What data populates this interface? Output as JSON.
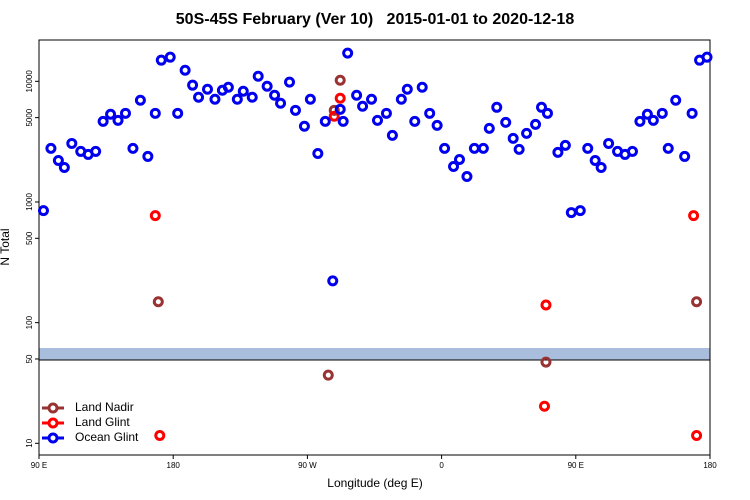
{
  "chart_data": {
    "type": "scatter",
    "title": "50S-45S February (Ver 10)   2015-01-01 to 2020-12-18",
    "xlabel": "Longitude (deg E)",
    "ylabel": "N Total",
    "xlim": [
      90,
      540
    ],
    "xticks": [
      {
        "value": 90,
        "label": "90 E"
      },
      180,
      {
        "value": 270,
        "label": "90 W"
      },
      {
        "value": 360,
        "label": "0"
      },
      {
        "value": 450,
        "label": "90 E"
      },
      {
        "value": 540,
        "label": "180"
      }
    ],
    "ylim": [
      8,
      22000
    ],
    "yticks": [
      10,
      50,
      100,
      500,
      1000,
      5000,
      10000
    ],
    "log_y": true,
    "legend": "lower left",
    "series": [
      {
        "name": "Land Nadir",
        "color": "#993333",
        "x": [
          170,
          288,
          292,
          284,
          430,
          531
        ],
        "values": [
          149,
          5750,
          10210,
          36.7,
          47.1,
          149
        ]
      },
      {
        "name": "Land Glint",
        "color": "#ff0000",
        "x": [
          168,
          292,
          288,
          171,
          430,
          429,
          529,
          531
        ],
        "values": [
          771,
          7240,
          5130,
          11.6,
          140,
          20.3,
          771,
          11.6
        ]
      },
      {
        "name": "Ocean Glint",
        "color": "#0000ee",
        "x": [
          93,
          98,
          103,
          107,
          112,
          118,
          123,
          128,
          133,
          138,
          143,
          148,
          153,
          158,
          163,
          168,
          172,
          178,
          183,
          188,
          193,
          197,
          203,
          208,
          213,
          217,
          223,
          227,
          233,
          237,
          243,
          248,
          252,
          258,
          262,
          268,
          272,
          277,
          282,
          287,
          292,
          294,
          297,
          303,
          307,
          313,
          317,
          323,
          327,
          333,
          337,
          342,
          347,
          352,
          357,
          362,
          368,
          372,
          377,
          382,
          388,
          392,
          397,
          403,
          408,
          412,
          417,
          423,
          427,
          431,
          438,
          443,
          447,
          453,
          458,
          463,
          467,
          472,
          478,
          483,
          488,
          493,
          498,
          502,
          508,
          512,
          517,
          523,
          528,
          533,
          538
        ],
        "values": [
          848,
          2780,
          2208,
          1932,
          3056,
          2624,
          2478,
          2624,
          4657,
          5331,
          4750,
          5430,
          2780,
          6966,
          2385,
          5430,
          14970,
          15850,
          5430,
          12360,
          9290,
          7380,
          8590,
          7100,
          8430,
          8930,
          7100,
          8280,
          7380,
          11020,
          9100,
          7660,
          6580,
          9840,
          5750,
          4240,
          7100,
          2524,
          4657,
          222,
          5860,
          4657,
          17130,
          7660,
          6210,
          7100,
          4750,
          5430,
          3565,
          7100,
          8590,
          4657,
          8930,
          5430,
          4315,
          2780,
          1968,
          2250,
          1626,
          2780,
          2780,
          4074,
          6090,
          4570,
          3365,
          2728,
          3706,
          4398,
          6090,
          5430,
          2575,
          2944,
          817,
          848,
          2780,
          2208,
          1932,
          3056,
          2624,
          2478,
          2624,
          4657,
          5331,
          4750,
          5430,
          2780,
          6966,
          2385,
          5430,
          14970,
          15850
        ]
      }
    ]
  }
}
